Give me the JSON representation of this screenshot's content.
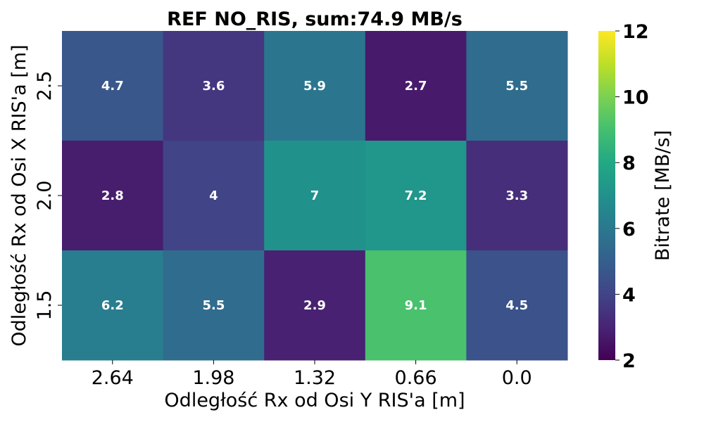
{
  "chart_data": {
    "type": "heatmap",
    "title": "REF NO_RIS, sum:74.9 MB/s",
    "xlabel": "Odległość Rx od Osi Y RIS'a [m]",
    "ylabel": "Odległość Rx od Osi X RIS'a [m]",
    "x_categories": [
      "2.64",
      "1.98",
      "1.32",
      "0.66",
      "0.0"
    ],
    "y_categories": [
      "2.5",
      "2.0",
      "1.5"
    ],
    "values": [
      [
        4.7,
        3.6,
        5.9,
        2.7,
        5.5
      ],
      [
        2.8,
        4.0,
        7.0,
        7.2,
        3.3
      ],
      [
        6.2,
        5.5,
        2.9,
        9.1,
        4.5
      ]
    ],
    "cell_labels": [
      [
        "4.7",
        "3.6",
        "5.9",
        "2.7",
        "5.5"
      ],
      [
        "2.8",
        "4",
        "7",
        "7.2",
        "3.3"
      ],
      [
        "6.2",
        "5.5",
        "2.9",
        "9.1",
        "4.5"
      ]
    ],
    "colorbar": {
      "label": "Bitrate [MB/s]",
      "range": [
        2,
        12
      ],
      "ticks": [
        "2",
        "4",
        "6",
        "8",
        "10",
        "12"
      ],
      "colormap": "viridis"
    },
    "grid": false,
    "legend": "none"
  }
}
